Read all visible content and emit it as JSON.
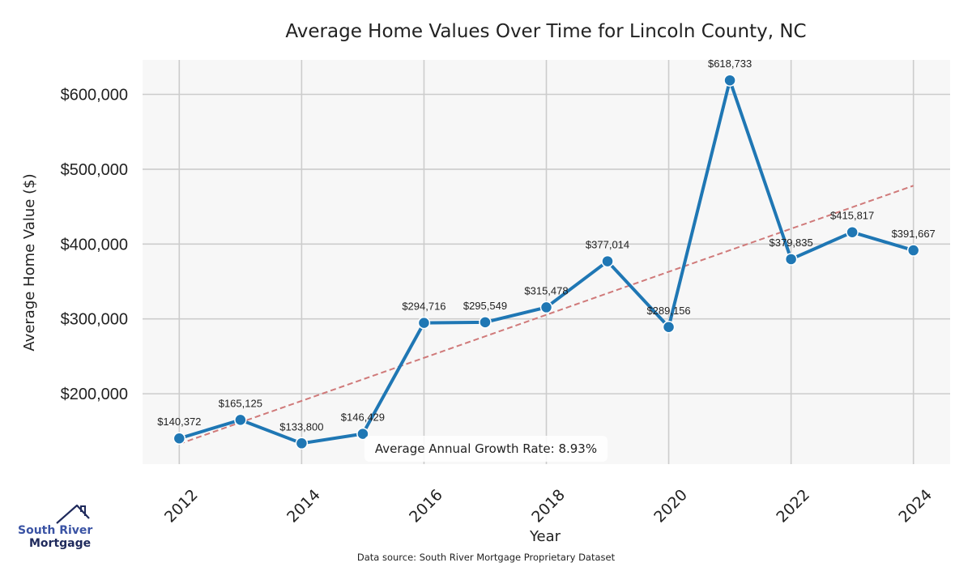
{
  "chart_data": {
    "type": "line",
    "title": "Average Home Values Over Time for Lincoln County, NC",
    "xlabel": "Year",
    "ylabel": "Average Home Value ($)",
    "x": [
      2012,
      2013,
      2014,
      2015,
      2016,
      2017,
      2018,
      2019,
      2020,
      2021,
      2022,
      2023,
      2024
    ],
    "series": [
      {
        "name": "Average Home Value",
        "color": "#1f77b4",
        "values": [
          140372,
          165125,
          133800,
          146429,
          294716,
          295549,
          315478,
          377014,
          289156,
          618733,
          379835,
          415817,
          391667
        ],
        "labels": [
          "$140,372",
          "$165,125",
          "$133,800",
          "$146,429",
          "$294,716",
          "$295,549",
          "$315,478",
          "$377,014",
          "$289,156",
          "$618,733",
          "$379,835",
          "$415,817",
          "$391,667"
        ]
      }
    ],
    "trendline": {
      "name": "Linear trend",
      "color": "#d07a7a",
      "style": "dashed",
      "start": {
        "x": 2012,
        "y": 133000
      },
      "end": {
        "x": 2024,
        "y": 478000
      }
    },
    "xticks": [
      "2012",
      "2014",
      "2016",
      "2018",
      "2020",
      "2022",
      "2024"
    ],
    "xtick_values": [
      2012,
      2014,
      2016,
      2018,
      2020,
      2022,
      2024
    ],
    "yticks": [
      "$200,000",
      "$300,000",
      "$400,000",
      "$500,000",
      "$600,000"
    ],
    "ytick_values": [
      200000,
      300000,
      400000,
      500000,
      600000
    ],
    "xlim": [
      2011.4,
      2024.6
    ],
    "ylim": [
      106000,
      646000
    ],
    "grid": true,
    "plot_background": "#f7f7f7",
    "grid_color": "#cccccc",
    "annotation": "Average Annual Growth Rate: 8.93%",
    "source_note": "Data source: South River Mortgage Proprietary Dataset"
  },
  "logo": {
    "line1": "South River",
    "line2": "Mortgage",
    "color_primary": "#3a53a4",
    "color_dark": "#1f2a5c"
  }
}
